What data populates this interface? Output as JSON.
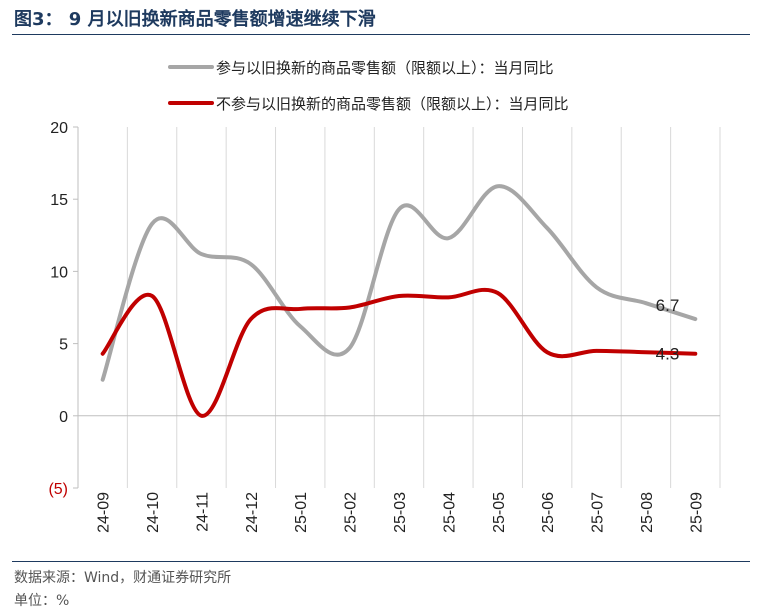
{
  "figure": {
    "title": "图3：  9 月以旧换新商品零售额增速继续下滑",
    "source": "数据来源：Wind，财通证券研究所",
    "unit": "单位：%"
  },
  "chart_data": {
    "type": "line",
    "categories": [
      "24-09",
      "24-10",
      "24-11",
      "24-12",
      "25-01",
      "25-02",
      "25-03",
      "25-04",
      "25-05",
      "25-06",
      "25-07",
      "25-08",
      "25-09"
    ],
    "ylim": [
      -5,
      20
    ],
    "yticks": [
      20,
      15,
      10,
      5,
      0,
      -5
    ],
    "ytick_labels": [
      "20",
      "15",
      "10",
      "5",
      "0",
      "(5)"
    ],
    "grid": "vertical",
    "legend_position": "top",
    "series": [
      {
        "name": "参与以旧换新的商品零售额（限额以上）：当月同比",
        "color": "#a6a6a6",
        "values": [
          2.5,
          13.3,
          11.2,
          10.5,
          6.2,
          4.7,
          14.3,
          12.3,
          15.9,
          13.0,
          8.9,
          7.8,
          6.7
        ],
        "end_label": "6.7"
      },
      {
        "name": "不参与以旧换新的商品零售额（限额以上）：当月同比",
        "color": "#c00000",
        "values": [
          4.3,
          8.3,
          0.0,
          6.7,
          7.4,
          7.5,
          8.3,
          8.2,
          8.5,
          4.4,
          4.5,
          4.4,
          4.3
        ],
        "end_label": "4.3"
      }
    ]
  }
}
